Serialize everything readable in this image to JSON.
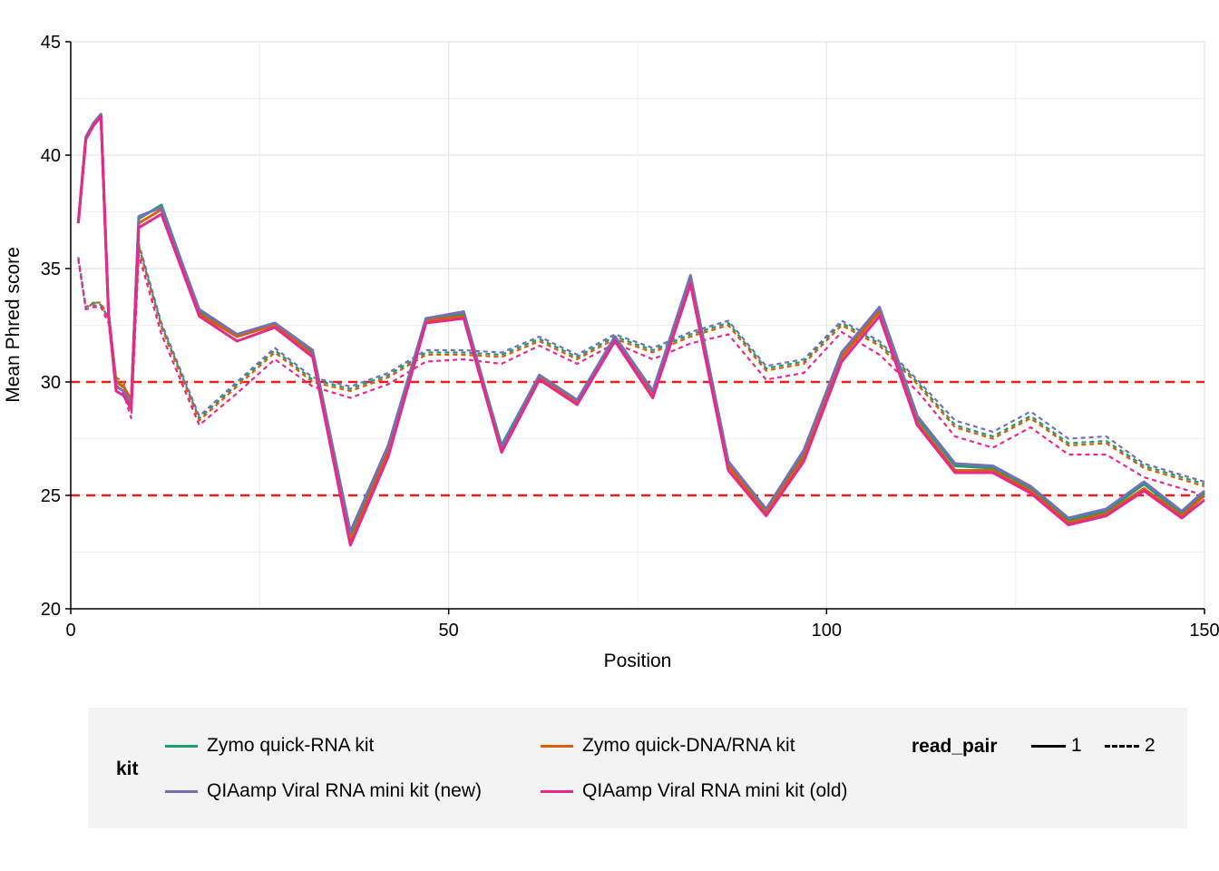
{
  "chart_data": {
    "type": "line",
    "xlabel": "Position",
    "ylabel": "Mean Phred score",
    "xlim": [
      0,
      150
    ],
    "ylim": [
      20,
      45
    ],
    "xticks": [
      0,
      50,
      100,
      150
    ],
    "yticks": [
      20,
      25,
      30,
      35,
      40,
      45
    ],
    "grid": true,
    "hlines": [
      {
        "y": 30,
        "color": "#ee1c1c",
        "style": "dashed"
      },
      {
        "y": 25,
        "color": "#ee1c1c",
        "style": "dashed"
      }
    ],
    "x": [
      1,
      2,
      3,
      4,
      5,
      6,
      7,
      8,
      9,
      12,
      17,
      22,
      27,
      32,
      37,
      42,
      47,
      52,
      57,
      62,
      67,
      72,
      77,
      82,
      87,
      92,
      97,
      102,
      107,
      112,
      117,
      122,
      127,
      132,
      137,
      142,
      147,
      150
    ],
    "series": [
      {
        "kit": "Zymo quick-RNA kit",
        "read_pair": "1",
        "color": "#1b9e77",
        "values": [
          37,
          40.8,
          41.4,
          41.8,
          33,
          30,
          29.8,
          29.2,
          37.2,
          37.8,
          33.1,
          32.1,
          32.6,
          31.3,
          23.3,
          27.1,
          32.8,
          33.0,
          27.2,
          30.3,
          29.2,
          32.0,
          29.6,
          34.6,
          26.4,
          24.3,
          26.9,
          31.3,
          33.2,
          28.4,
          26.3,
          26.2,
          25.3,
          23.9,
          24.3,
          25.5,
          24.2,
          25.1
        ]
      },
      {
        "kit": "Zymo quick-RNA kit",
        "read_pair": "2",
        "color": "#1b9e77",
        "values": [
          35.5,
          33.3,
          33.5,
          33.4,
          32.8,
          30.1,
          29.8,
          28.8,
          36,
          32.5,
          28.4,
          29.9,
          31.4,
          30.1,
          29.7,
          30.3,
          31.3,
          31.3,
          31.2,
          31.9,
          31.1,
          32.0,
          31.4,
          32.1,
          32.6,
          30.6,
          30.9,
          32.6,
          31.7,
          30.0,
          28.1,
          27.6,
          28.5,
          27.3,
          27.4,
          26.3,
          25.8,
          25.5
        ]
      },
      {
        "kit": "Zymo quick-DNA/RNA kit",
        "read_pair": "1",
        "color": "#d95f02",
        "values": [
          37,
          40.8,
          41.4,
          41.8,
          33,
          30,
          29.8,
          29.2,
          37.0,
          37.6,
          33.0,
          32.0,
          32.5,
          31.2,
          23.0,
          26.9,
          32.7,
          32.9,
          27.1,
          30.2,
          29.1,
          31.9,
          29.5,
          34.5,
          26.3,
          24.2,
          26.7,
          31.1,
          33.1,
          28.2,
          26.1,
          26.1,
          25.2,
          23.8,
          24.2,
          25.3,
          24.1,
          25.0
        ]
      },
      {
        "kit": "Zymo quick-DNA/RNA kit",
        "read_pair": "2",
        "color": "#d95f02",
        "values": [
          35.5,
          33.2,
          33.5,
          33.5,
          32.8,
          30.2,
          30.0,
          28.7,
          35.9,
          32.4,
          28.3,
          29.8,
          31.3,
          30.0,
          29.6,
          30.2,
          31.2,
          31.2,
          31.1,
          31.8,
          31.0,
          31.9,
          31.3,
          32.0,
          32.5,
          30.5,
          30.8,
          32.5,
          31.6,
          29.9,
          28.0,
          27.5,
          28.4,
          27.2,
          27.3,
          26.2,
          25.7,
          25.4
        ]
      },
      {
        "kit": "QIAamp Viral RNA mini kit (new)",
        "read_pair": "1",
        "color": "#7570b3",
        "values": [
          37,
          40.8,
          41.4,
          41.8,
          33,
          29.8,
          29.6,
          29.0,
          37.3,
          37.7,
          33.2,
          32.1,
          32.6,
          31.4,
          23.4,
          27.2,
          32.8,
          33.1,
          27.1,
          30.3,
          29.2,
          32.0,
          29.6,
          34.7,
          26.5,
          24.4,
          27.0,
          31.3,
          33.3,
          28.5,
          26.4,
          26.3,
          25.4,
          24.0,
          24.4,
          25.6,
          24.3,
          25.2
        ]
      },
      {
        "kit": "QIAamp Viral RNA mini kit (new)",
        "read_pair": "2",
        "color": "#7570b3",
        "values": [
          35.5,
          33.3,
          33.4,
          33.3,
          32.7,
          30.1,
          29.7,
          28.9,
          36.1,
          32.6,
          28.5,
          30.0,
          31.5,
          30.2,
          29.8,
          30.4,
          31.4,
          31.4,
          31.3,
          32.0,
          31.2,
          32.1,
          31.5,
          32.2,
          32.7,
          30.7,
          31.0,
          32.7,
          31.8,
          30.1,
          28.3,
          27.8,
          28.7,
          27.5,
          27.6,
          26.4,
          25.9,
          25.6
        ]
      },
      {
        "kit": "QIAamp Viral RNA mini kit (old)",
        "read_pair": "1",
        "color": "#e7298a",
        "values": [
          37,
          40.7,
          41.3,
          41.7,
          32.9,
          29.6,
          29.4,
          28.8,
          36.8,
          37.4,
          32.9,
          31.8,
          32.4,
          31.1,
          22.8,
          26.7,
          32.6,
          32.8,
          26.9,
          30.1,
          29.0,
          31.8,
          29.3,
          34.3,
          26.1,
          24.1,
          26.5,
          30.9,
          32.9,
          28.1,
          26.0,
          26.0,
          25.1,
          23.7,
          24.1,
          25.2,
          24.0,
          24.8
        ]
      },
      {
        "kit": "QIAamp Viral RNA mini kit (old)",
        "read_pair": "2",
        "color": "#e7298a",
        "values": [
          35.4,
          33.2,
          33.3,
          33.3,
          32.6,
          29.9,
          29.5,
          28.4,
          35.6,
          32.1,
          28.1,
          29.5,
          31.0,
          29.8,
          29.3,
          29.9,
          30.9,
          31.0,
          30.8,
          31.6,
          30.8,
          31.7,
          31.0,
          31.7,
          32.1,
          30.1,
          30.4,
          32.2,
          31.2,
          29.6,
          27.6,
          27.1,
          28.0,
          26.8,
          26.8,
          25.8,
          25.3,
          25.0
        ]
      }
    ]
  },
  "legend": {
    "kit_title": "kit",
    "kit_items": [
      {
        "label": "Zymo quick-RNA kit",
        "color": "#1b9e77"
      },
      {
        "label": "Zymo quick-DNA/RNA kit",
        "color": "#d95f02"
      },
      {
        "label": "QIAamp Viral RNA mini kit (new)",
        "color": "#7570b3"
      },
      {
        "label": "QIAamp Viral RNA mini kit (old)",
        "color": "#e7298a"
      }
    ],
    "read_pair_title": "read_pair",
    "read_pair_items": [
      {
        "label": "1",
        "style": "solid"
      },
      {
        "label": "2",
        "style": "dashed"
      }
    ]
  }
}
